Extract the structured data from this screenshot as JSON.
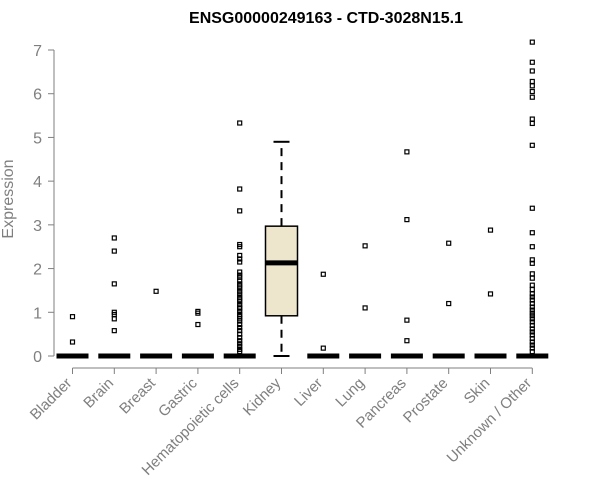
{
  "chart_data": {
    "type": "box",
    "title": "ENSG00000249163 - CTD-3028N15.1",
    "xlabel": "",
    "ylabel": "Expression",
    "ylim": [
      0,
      7
    ],
    "yticks": [
      0,
      1,
      2,
      3,
      4,
      5,
      6,
      7
    ],
    "grid": false,
    "legend": "none",
    "colors": {
      "box_fill": "#ede6cc",
      "stroke": "#000000",
      "axis": "#7f7f7f"
    },
    "categories": [
      "Bladder",
      "Brain",
      "Breast",
      "Gastric",
      "Hematopoietic cells",
      "Kidney",
      "Liver",
      "Lung",
      "Pancreas",
      "Prostate",
      "Skin",
      "Unknown / Other"
    ],
    "boxes": [
      {
        "category": "Bladder",
        "min": 0,
        "q1": 0,
        "median": 0,
        "q3": 0,
        "max": 0,
        "outliers": [
          0.9,
          0.32
        ]
      },
      {
        "category": "Brain",
        "min": 0,
        "q1": 0,
        "median": 0,
        "q3": 0,
        "max": 0,
        "outliers": [
          2.7,
          2.4,
          1.65,
          1.0,
          0.95,
          0.85,
          0.58
        ]
      },
      {
        "category": "Breast",
        "min": 0,
        "q1": 0,
        "median": 0,
        "q3": 0,
        "max": 0,
        "outliers": [
          1.48
        ]
      },
      {
        "category": "Gastric",
        "min": 0,
        "q1": 0,
        "median": 0,
        "q3": 0,
        "max": 0,
        "outliers": [
          1.02,
          0.98,
          0.72
        ]
      },
      {
        "category": "Hematopoietic cells",
        "min": 0,
        "q1": 0,
        "median": 0,
        "q3": 0,
        "max": 0,
        "outliers": [
          5.33,
          3.82,
          3.32,
          2.55,
          2.5,
          2.3,
          2.22,
          2.15,
          1.92,
          1.85,
          1.8,
          1.72,
          1.65,
          1.6,
          1.55,
          1.48,
          1.42,
          1.35,
          1.3,
          1.25,
          1.18,
          1.12,
          1.08,
          1.02,
          0.95,
          0.9,
          0.85,
          0.8,
          0.72,
          0.65,
          0.58,
          0.5,
          0.42,
          0.35,
          0.28,
          0.22,
          0.15,
          0.1
        ]
      },
      {
        "category": "Kidney",
        "min": 0,
        "q1": 0.92,
        "median": 2.13,
        "q3": 2.97,
        "max": 4.9,
        "outliers": []
      },
      {
        "category": "Liver",
        "min": 0,
        "q1": 0,
        "median": 0,
        "q3": 0,
        "max": 0,
        "outliers": [
          1.87,
          0.18
        ]
      },
      {
        "category": "Lung",
        "min": 0,
        "q1": 0,
        "median": 0,
        "q3": 0,
        "max": 0,
        "outliers": [
          2.52,
          1.1
        ]
      },
      {
        "category": "Pancreas",
        "min": 0,
        "q1": 0,
        "median": 0,
        "q3": 0,
        "max": 0,
        "outliers": [
          4.67,
          3.12,
          0.82,
          0.35
        ]
      },
      {
        "category": "Prostate",
        "min": 0,
        "q1": 0,
        "median": 0,
        "q3": 0,
        "max": 0,
        "outliers": [
          2.58,
          1.2
        ]
      },
      {
        "category": "Skin",
        "min": 0,
        "q1": 0,
        "median": 0,
        "q3": 0,
        "max": 0,
        "outliers": [
          2.88,
          1.42
        ]
      },
      {
        "category": "Unknown / Other",
        "min": 0,
        "q1": 0,
        "median": 0,
        "q3": 0,
        "max": 0,
        "outliers": [
          7.18,
          6.72,
          6.52,
          6.28,
          6.18,
          6.05,
          5.92,
          5.42,
          5.32,
          4.82,
          3.38,
          2.82,
          2.5,
          2.2,
          2.12,
          1.88,
          1.78,
          1.62,
          1.52,
          1.42,
          1.35,
          1.28,
          1.2,
          1.12,
          1.05,
          0.98,
          0.92,
          0.85,
          0.78,
          0.7,
          0.62,
          0.55,
          0.48,
          0.4,
          0.32,
          0.25,
          0.18,
          0.1
        ]
      }
    ]
  }
}
